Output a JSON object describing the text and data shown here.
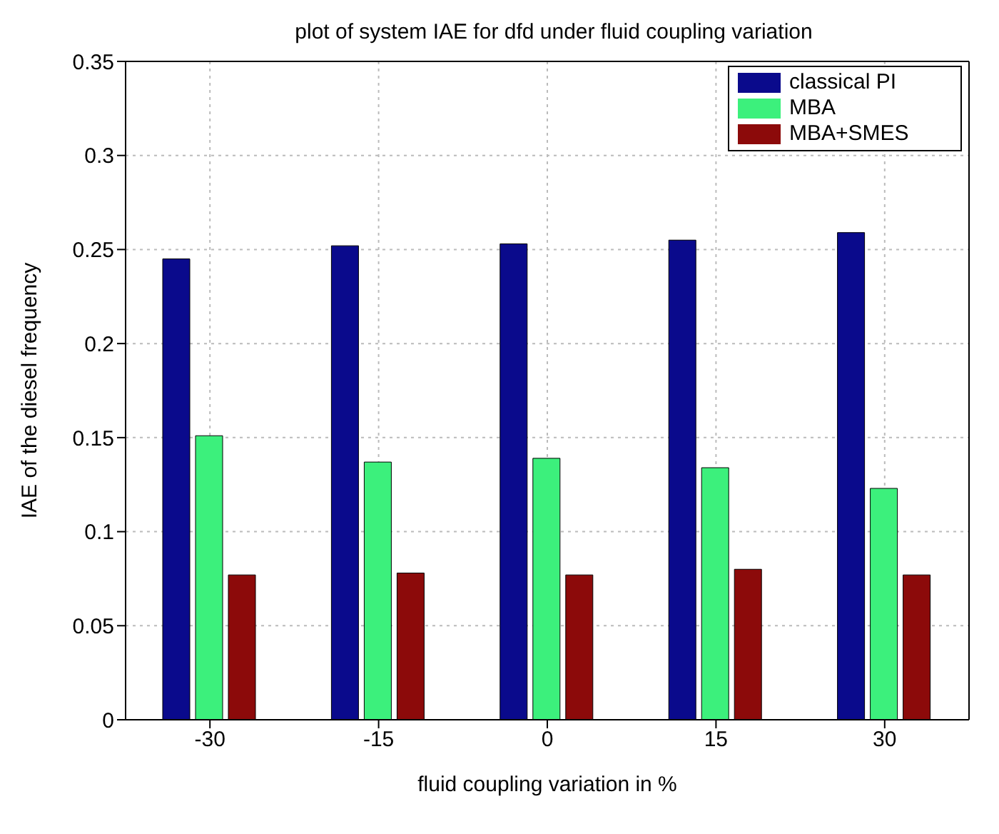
{
  "chart_data": {
    "type": "bar",
    "title": "plot of system IAE for dfd under fluid coupling variation",
    "xlabel": "fluid coupling variation in %",
    "ylabel": "IAE of the diesel frequency",
    "categories": [
      "-30",
      "-15",
      "0",
      "15",
      "30"
    ],
    "series": [
      {
        "name": "classical PI",
        "color": "#0a0a8c",
        "values": [
          0.245,
          0.252,
          0.253,
          0.255,
          0.259
        ]
      },
      {
        "name": "MBA",
        "color": "#3cf07c",
        "values": [
          0.151,
          0.137,
          0.139,
          0.134,
          0.123
        ]
      },
      {
        "name": "MBA+SMES",
        "color": "#8c0a0a",
        "values": [
          0.077,
          0.078,
          0.077,
          0.08,
          0.077
        ]
      }
    ],
    "ylim": [
      0,
      0.35
    ],
    "yticks": [
      0,
      0.05,
      0.1,
      0.15,
      0.2,
      0.25,
      0.3,
      0.35
    ],
    "grid": true,
    "legend": "top right"
  }
}
